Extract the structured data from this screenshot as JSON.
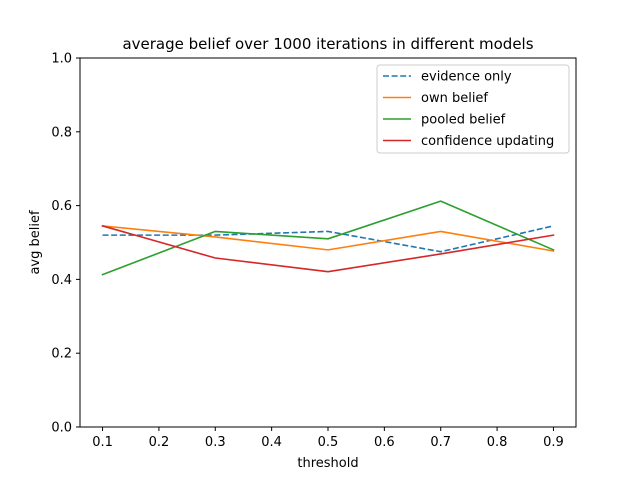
{
  "chart_data": {
    "type": "line",
    "title": "average belief over 1000 iterations in different models",
    "xlabel": "threshold",
    "ylabel": "avg belief",
    "x": [
      0.1,
      0.3,
      0.5,
      0.7,
      0.9
    ],
    "xlim": [
      0.06,
      0.94
    ],
    "ylim": [
      0.0,
      1.0
    ],
    "xticks": [
      "0.1",
      "0.2",
      "0.3",
      "0.4",
      "0.5",
      "0.6",
      "0.7",
      "0.8",
      "0.9"
    ],
    "yticks": [
      "0.0",
      "0.2",
      "0.4",
      "0.6",
      "0.8",
      "1.0"
    ],
    "grid": false,
    "legend_position": "top-right",
    "series": [
      {
        "name": "evidence only",
        "color": "#1f77b4",
        "dash": "dashed",
        "values": [
          0.52,
          0.52,
          0.53,
          0.475,
          0.545
        ]
      },
      {
        "name": "own belief",
        "color": "#ff7f0e",
        "dash": "solid",
        "values": [
          0.545,
          0.515,
          0.48,
          0.53,
          0.477
        ]
      },
      {
        "name": "pooled belief",
        "color": "#2ca02c",
        "dash": "solid",
        "values": [
          0.413,
          0.53,
          0.51,
          0.612,
          0.48
        ]
      },
      {
        "name": "confidence updating",
        "color": "#d62728",
        "dash": "solid",
        "values": [
          0.545,
          0.458,
          0.421,
          0.469,
          0.52
        ]
      }
    ]
  }
}
